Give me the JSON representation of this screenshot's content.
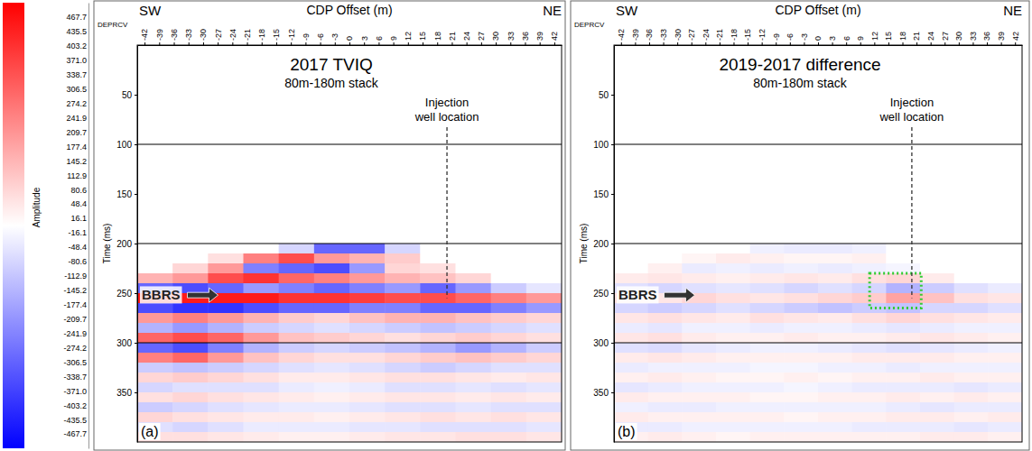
{
  "colorbar": {
    "label": "Amplitude",
    "range": [
      -500,
      500
    ],
    "ticks": [
      467.7,
      435.5,
      403.2,
      {
        "value": 371,
        "label": "371.0"
      },
      338.7,
      306.5,
      274.2,
      241.9,
      209.7,
      177.4,
      145.2,
      112.9,
      80.6,
      48.4,
      16.1,
      -16.1,
      -48.4,
      -80.6,
      -112.9,
      -145.2,
      -177.4,
      -209.7,
      -241.9,
      -274.2,
      -306.5,
      -338.7,
      {
        "value": -371,
        "label": "-371.0"
      },
      -403.2,
      -435.5,
      -467.7
    ]
  },
  "chart_data": [
    {
      "type": "heatmap",
      "title": "2017 TVIQ",
      "subtitle": "80m-180m stack",
      "x_label": "CDP Offset (m)",
      "x_left_label": "SW",
      "x_right_label": "NE",
      "corner_label": "DEPRCV",
      "y_label": "Time (ms)",
      "panel_label": "(a)",
      "xlim": [
        -43.5,
        43.5
      ],
      "xticks": [
        -42,
        -39,
        -36,
        -33,
        -30,
        -27,
        -24,
        -21,
        -18,
        -15,
        -12,
        -9,
        -6,
        -3,
        0,
        3,
        6,
        9,
        12,
        15,
        18,
        21,
        24,
        27,
        30,
        33,
        36,
        39,
        42
      ],
      "ylim": [
        0,
        400
      ],
      "yticks": [
        50,
        100,
        150,
        200,
        250,
        300,
        350
      ],
      "hlines": [
        100,
        200,
        300
      ],
      "well_label": "Injection well location",
      "well_x": 20,
      "well_depth": 255,
      "bbrs": {
        "label": "BBRS",
        "y": 252
      },
      "cells": {
        "x_edges": [
          -43.5,
          -36.25,
          -29,
          -21.75,
          -14.5,
          -7.25,
          0,
          7.25,
          14.5,
          21.75,
          29,
          36.25,
          43.5
        ],
        "y_edges": [
          200,
          210,
          220,
          230,
          240,
          250,
          260,
          270,
          280,
          290,
          300,
          310,
          320,
          330,
          340,
          350,
          360,
          370,
          380,
          390,
          400
        ],
        "z": [
          [
            0,
            0,
            0,
            0,
            -80,
            -300,
            -300,
            -80,
            0,
            0,
            0,
            0
          ],
          [
            0,
            0,
            60,
            250,
            350,
            200,
            150,
            100,
            0,
            0,
            0,
            0
          ],
          [
            0,
            80,
            200,
            -250,
            -300,
            -350,
            -200,
            80,
            60,
            0,
            0,
            0
          ],
          [
            150,
            200,
            350,
            400,
            300,
            250,
            200,
            150,
            120,
            80,
            0,
            0
          ],
          [
            -300,
            -350,
            -300,
            -200,
            -250,
            -300,
            -250,
            -200,
            -300,
            -200,
            -100,
            -50
          ],
          [
            450,
            450,
            450,
            450,
            400,
            400,
            380,
            350,
            350,
            300,
            250,
            200
          ],
          [
            -350,
            -400,
            -400,
            -350,
            -300,
            -300,
            -250,
            -250,
            -300,
            -300,
            -250,
            -200
          ],
          [
            200,
            250,
            200,
            150,
            100,
            80,
            120,
            150,
            150,
            120,
            100,
            80
          ],
          [
            -150,
            -200,
            -150,
            -100,
            -80,
            -60,
            -80,
            -100,
            -120,
            -100,
            -80,
            -60
          ],
          [
            300,
            350,
            300,
            200,
            120,
            100,
            80,
            60,
            80,
            100,
            80,
            60
          ],
          [
            -300,
            -350,
            -250,
            -150,
            -100,
            -80,
            -100,
            -120,
            -150,
            -200,
            -150,
            -100
          ],
          [
            250,
            300,
            200,
            120,
            80,
            60,
            60,
            80,
            100,
            120,
            100,
            80
          ],
          [
            -100,
            -120,
            -100,
            -80,
            -60,
            -50,
            -60,
            -80,
            -100,
            -80,
            -60,
            -60
          ],
          [
            80,
            100,
            80,
            60,
            40,
            40,
            50,
            60,
            60,
            50,
            40,
            50
          ],
          [
            -80,
            -60,
            -60,
            -60,
            -40,
            -30,
            -40,
            -60,
            -60,
            -50,
            -60,
            -50
          ],
          [
            60,
            80,
            60,
            50,
            40,
            30,
            40,
            50,
            50,
            40,
            50,
            40
          ],
          [
            -100,
            -80,
            -60,
            -50,
            -40,
            -40,
            -50,
            -60,
            -60,
            -50,
            -60,
            -60
          ],
          [
            80,
            60,
            50,
            40,
            40,
            30,
            40,
            50,
            60,
            50,
            60,
            50
          ],
          [
            -60,
            -80,
            -60,
            -40,
            -40,
            -40,
            -50,
            -50,
            -60,
            -60,
            -60,
            -50
          ],
          [
            60,
            60,
            50,
            40,
            30,
            30,
            40,
            50,
            50,
            60,
            60,
            50
          ]
        ]
      }
    },
    {
      "type": "heatmap",
      "title": "2019-2017 difference",
      "subtitle": "80m-180m stack",
      "x_label": "CDP Offset (m)",
      "x_left_label": "SW",
      "x_right_label": "NE",
      "corner_label": "DEPRCV",
      "y_label": "Time (ms)",
      "panel_label": "(b)",
      "xlim": [
        -43.5,
        43.5
      ],
      "xticks": [
        -42,
        -39,
        -36,
        -33,
        -30,
        -27,
        -24,
        -21,
        -18,
        -15,
        -12,
        -9,
        -6,
        -3,
        0,
        3,
        6,
        9,
        12,
        15,
        18,
        21,
        24,
        27,
        30,
        33,
        36,
        39,
        42
      ],
      "ylim": [
        0,
        400
      ],
      "yticks": [
        50,
        100,
        150,
        200,
        250,
        300,
        350
      ],
      "hlines": [
        100,
        200,
        300
      ],
      "well_label": "Injection well location",
      "well_x": 20,
      "well_depth": 255,
      "bbrs": {
        "label": "BBRS",
        "y": 252
      },
      "highlight": {
        "xlim": [
          11,
          22
        ],
        "ylim": [
          230,
          265
        ]
      },
      "cells": {
        "x_edges": [
          -43.5,
          -36.25,
          -29,
          -21.75,
          -14.5,
          -7.25,
          0,
          7.25,
          14.5,
          21.75,
          29,
          36.25,
          43.5
        ],
        "y_edges": [
          200,
          210,
          220,
          230,
          240,
          250,
          260,
          270,
          280,
          290,
          300,
          310,
          320,
          330,
          340,
          350,
          360,
          370,
          380,
          390,
          400
        ],
        "z": [
          [
            0,
            0,
            0,
            0,
            -30,
            -40,
            -40,
            -30,
            0,
            0,
            0,
            0
          ],
          [
            0,
            0,
            20,
            40,
            30,
            20,
            20,
            30,
            0,
            0,
            0,
            0
          ],
          [
            0,
            30,
            -40,
            -30,
            -40,
            -30,
            -40,
            -30,
            -20,
            0,
            0,
            0
          ],
          [
            40,
            50,
            40,
            30,
            40,
            50,
            40,
            60,
            80,
            40,
            0,
            0
          ],
          [
            -60,
            -80,
            -60,
            -50,
            -60,
            -80,
            -60,
            -80,
            -150,
            -100,
            -60,
            -40
          ],
          [
            60,
            50,
            80,
            60,
            50,
            60,
            80,
            100,
            180,
            120,
            60,
            50
          ],
          [
            -80,
            -100,
            -80,
            -60,
            -80,
            -100,
            -120,
            -100,
            -120,
            -80,
            -80,
            -60
          ],
          [
            50,
            60,
            50,
            40,
            60,
            50,
            40,
            60,
            80,
            60,
            50,
            40
          ],
          [
            -40,
            -50,
            -30,
            -30,
            -40,
            -30,
            -30,
            -40,
            -50,
            -40,
            -30,
            -30
          ],
          [
            50,
            60,
            40,
            30,
            30,
            40,
            30,
            30,
            40,
            50,
            40,
            30
          ],
          [
            -60,
            -70,
            -50,
            -40,
            -30,
            -30,
            -40,
            -50,
            -60,
            -50,
            -40,
            -30
          ],
          [
            40,
            50,
            40,
            30,
            30,
            30,
            30,
            40,
            40,
            40,
            30,
            30
          ],
          [
            -40,
            -30,
            -30,
            -30,
            -20,
            -20,
            -30,
            -30,
            -40,
            -30,
            -30,
            -30
          ],
          [
            30,
            40,
            30,
            20,
            20,
            30,
            20,
            30,
            30,
            40,
            30,
            30
          ],
          [
            -50,
            -40,
            -30,
            -30,
            -30,
            -20,
            -30,
            -40,
            -40,
            -40,
            -50,
            -40
          ],
          [
            40,
            30,
            30,
            30,
            20,
            20,
            30,
            30,
            40,
            30,
            40,
            30
          ],
          [
            -30,
            -40,
            -40,
            -30,
            -30,
            -30,
            -30,
            -30,
            -40,
            -50,
            -40,
            -40
          ],
          [
            40,
            30,
            30,
            30,
            30,
            20,
            30,
            30,
            40,
            40,
            30,
            40
          ],
          [
            -40,
            -40,
            -30,
            -30,
            -30,
            -30,
            -30,
            -40,
            -40,
            -40,
            -50,
            -40
          ],
          [
            30,
            40,
            30,
            20,
            30,
            30,
            30,
            30,
            30,
            40,
            40,
            30
          ]
        ]
      }
    }
  ]
}
